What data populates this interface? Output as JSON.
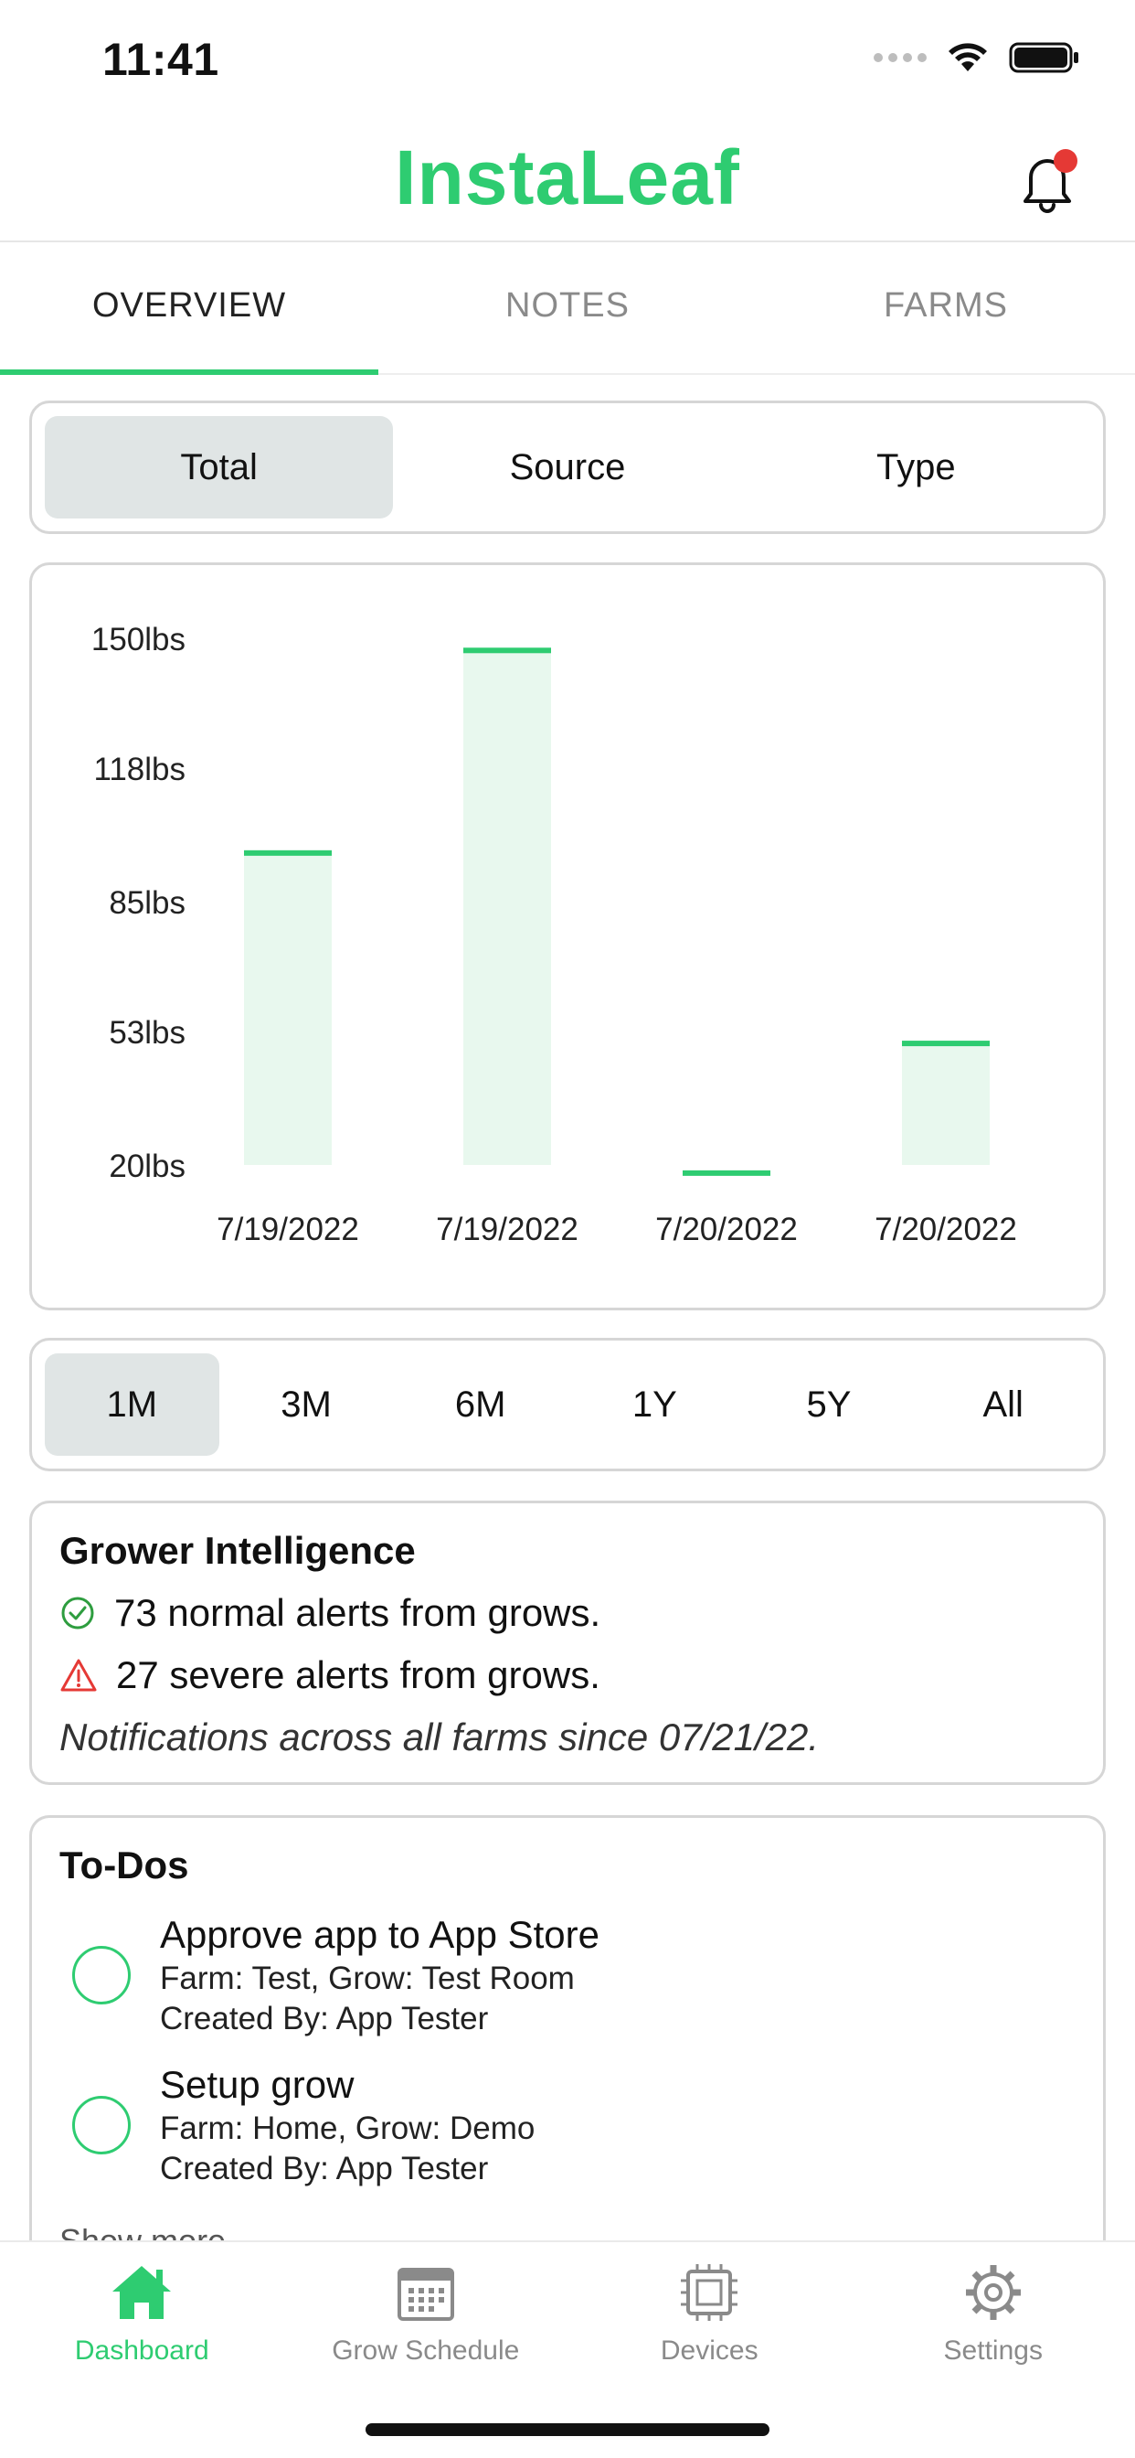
{
  "status": {
    "time": "11:41"
  },
  "app": {
    "title": "InstaLeaf"
  },
  "tabs": [
    {
      "label": "OVERVIEW"
    },
    {
      "label": "NOTES"
    },
    {
      "label": "FARMS"
    }
  ],
  "breakdown": {
    "options": [
      "Total",
      "Source",
      "Type"
    ],
    "selected": "Total"
  },
  "chart_data": {
    "type": "bar",
    "categories": [
      "7/19/2022",
      "7/19/2022",
      "7/20/2022",
      "7/20/2022"
    ],
    "values": [
      97,
      147,
      18,
      50
    ],
    "y_ticks": [
      "150lbs",
      "118lbs",
      "85lbs",
      "53lbs",
      "20lbs"
    ],
    "y_tick_values": [
      150,
      118,
      85,
      53,
      20
    ],
    "ylim": [
      20,
      150
    ],
    "unit": "lbs",
    "grid": false,
    "colors": {
      "bar_fill": "#e8f8ee",
      "bar_top": "#2ecc71"
    }
  },
  "range": {
    "options": [
      "1M",
      "3M",
      "6M",
      "1Y",
      "5Y",
      "All"
    ],
    "selected": "1M"
  },
  "intel": {
    "title": "Grower Intelligence",
    "normal": "73 normal alerts from grows.",
    "severe": "27 severe alerts from grows.",
    "note": "Notifications across all farms since 07/21/22."
  },
  "todos": {
    "title": "To-Dos",
    "items": [
      {
        "title": "Approve app to App Store",
        "meta": "Farm: Test, Grow: Test Room",
        "creator": "Created By: App Tester"
      },
      {
        "title": "Setup grow",
        "meta": "Farm: Home, Grow: Demo",
        "creator": "Created By: App Tester"
      }
    ],
    "show_more": "Show more"
  },
  "nav": [
    {
      "label": "Dashboard",
      "icon": "home-icon"
    },
    {
      "label": "Grow Schedule",
      "icon": "calendar-icon"
    },
    {
      "label": "Devices",
      "icon": "chip-icon"
    },
    {
      "label": "Settings",
      "icon": "gear-icon"
    }
  ],
  "colors": {
    "accent": "#2ecc71",
    "alert_red": "#e53935",
    "ok_green": "#2e9d3f"
  }
}
